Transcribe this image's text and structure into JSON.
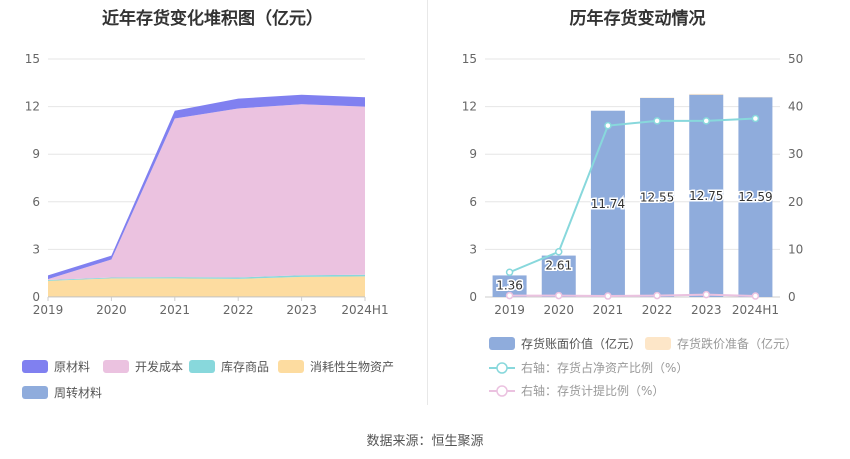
{
  "titles": {
    "left": "近年存货变化堆积图（亿元）",
    "right": "历年存货变动情况"
  },
  "source": "数据来源：恒生聚源",
  "colors": {
    "raw": "#8080f0",
    "dev": "#ebc2e0",
    "stock": "#88d8dc",
    "consumable": "#fddca0",
    "turnover": "#8facdc",
    "book": "#8facdc",
    "reserve": "#fde6c8",
    "ratio_net": "#88d8dc",
    "ratio_provision": "#ebc2e0"
  },
  "chart_data": [
    {
      "type": "area",
      "title": "近年存货变化堆积图（亿元）",
      "categories": [
        "2019",
        "2020",
        "2021",
        "2022",
        "2023",
        "2024H1"
      ],
      "ylim": [
        0,
        15
      ],
      "yticks": [
        0,
        3,
        6,
        9,
        12,
        15
      ],
      "stacked": true,
      "series": [
        {
          "name": "周转材料",
          "key": "turnover",
          "values": [
            0.02,
            0.02,
            0.02,
            0.02,
            0.02,
            0.02
          ]
        },
        {
          "name": "消耗性生物资产",
          "key": "consumable",
          "values": [
            1.0,
            1.15,
            1.15,
            1.12,
            1.25,
            1.28
          ]
        },
        {
          "name": "库存商品",
          "key": "stock",
          "values": [
            0.05,
            0.06,
            0.08,
            0.09,
            0.1,
            0.1
          ]
        },
        {
          "name": "开发成本",
          "key": "dev",
          "values": [
            0.06,
            1.13,
            10.0,
            10.65,
            10.78,
            10.6
          ]
        },
        {
          "name": "原材料",
          "key": "raw",
          "values": [
            0.23,
            0.25,
            0.49,
            0.62,
            0.6,
            0.59
          ]
        }
      ],
      "legend": [
        "原材料",
        "开发成本",
        "库存商品",
        "消耗性生物资产",
        "周转材料"
      ]
    },
    {
      "type": "bar",
      "title": "历年存货变动情况",
      "categories": [
        "2019",
        "2020",
        "2021",
        "2022",
        "2023",
        "2024H1"
      ],
      "ylim": [
        0,
        15
      ],
      "yticks": [
        0,
        3,
        6,
        9,
        12,
        15
      ],
      "y2lim": [
        0,
        50
      ],
      "y2ticks": [
        0,
        10,
        20,
        30,
        40,
        50
      ],
      "series": [
        {
          "name": "存货账面价值（亿元）",
          "values": [
            1.36,
            2.61,
            11.74,
            12.55,
            12.75,
            12.59
          ],
          "labels": [
            "1.36",
            "2.61",
            "11.74",
            "12.55",
            "12.75",
            "12.59"
          ]
        },
        {
          "name": "存货跌价准备（亿元）",
          "values": [
            0.0,
            0.0,
            0.0,
            0.02,
            0.05,
            0.02
          ]
        },
        {
          "name": "右轴：存货占净资产比例（%）",
          "axis": "right",
          "values": [
            5.2,
            9.5,
            36.0,
            37.0,
            37.0,
            37.5
          ]
        },
        {
          "name": "右轴：存货计提比例（%）",
          "axis": "right",
          "values": [
            0.3,
            0.3,
            0.2,
            0.3,
            0.5,
            0.2
          ]
        }
      ]
    }
  ]
}
